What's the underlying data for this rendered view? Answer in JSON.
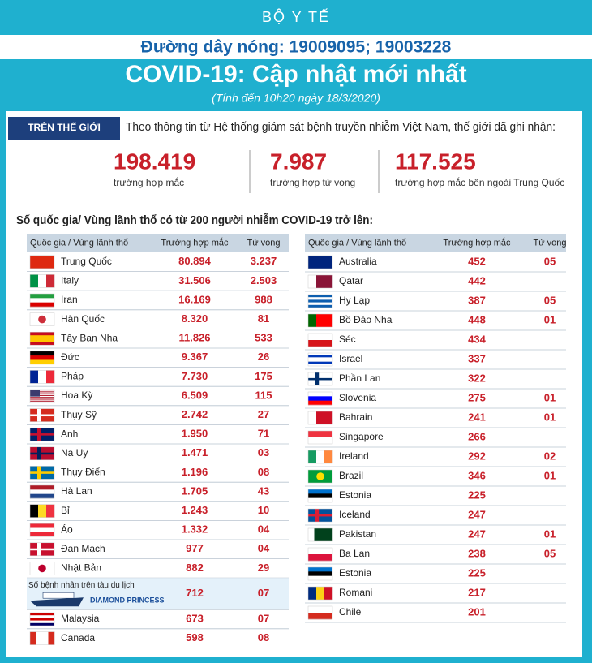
{
  "header": {
    "org": "BỘ Y TẾ",
    "hotline": "Đường dây nóng: 19009095; 19003228",
    "title": "COVID-19: Cập nhật mới nhất",
    "subtitle": "(Tính đến 10h20 ngày 18/3/2020)"
  },
  "world": {
    "label": "TRÊN THẾ GIỚI",
    "intro": "Theo thông tin từ Hệ thống giám sát bệnh truyền nhiễm Việt Nam, thế giới đã ghi nhận:",
    "stats": [
      {
        "value": "198.419",
        "label": "trường hợp mắc"
      },
      {
        "value": "7.987",
        "label": "trường hợp tử vong"
      },
      {
        "value": "117.525",
        "label": "trường hợp  mắc bên ngoài Trung Quốc"
      }
    ]
  },
  "tables": {
    "heading": "Số quốc gia/ Vùng lãnh thổ có từ 200 người  nhiễm COVID-19 trở lên:",
    "left": {
      "columns": [
        "Quốc gia / Vùng lãnh thổ",
        "Trường hợp mắc",
        "Tử vong"
      ],
      "rows": [
        {
          "name": "Trung Quốc",
          "cases": "80.894",
          "deaths": "3.237"
        },
        {
          "name": "Italy",
          "cases": "31.506",
          "deaths": "2.503"
        },
        {
          "name": "Iran",
          "cases": "16.169",
          "deaths": "988"
        },
        {
          "name": "Hàn Quốc",
          "cases": "8.320",
          "deaths": "81"
        },
        {
          "name": "Tây Ban Nha",
          "cases": "11.826",
          "deaths": "533"
        },
        {
          "name": "Đức",
          "cases": "9.367",
          "deaths": "26"
        },
        {
          "name": "Pháp",
          "cases": "7.730",
          "deaths": "175"
        },
        {
          "name": "Hoa Kỳ",
          "cases": "6.509",
          "deaths": "115"
        },
        {
          "name": "Thụy Sỹ",
          "cases": "2.742",
          "deaths": "27"
        },
        {
          "name": "Anh",
          "cases": "1.950",
          "deaths": "71"
        },
        {
          "name": "Na Uy",
          "cases": "1.471",
          "deaths": "03"
        },
        {
          "name": "Thụy Điển",
          "cases": "1.196",
          "deaths": "08"
        },
        {
          "name": "Hà Lan",
          "cases": "1.705",
          "deaths": "43"
        },
        {
          "name": "Bỉ",
          "cases": "1.243",
          "deaths": "10"
        },
        {
          "name": "Áo",
          "cases": "1.332",
          "deaths": "04"
        },
        {
          "name": "Đan Mạch",
          "cases": "977",
          "deaths": "04"
        },
        {
          "name": "Nhật Bản",
          "cases": "882",
          "deaths": "29"
        },
        {
          "name": "Số bệnh nhân trên tàu du lịch",
          "ship": "DIAMOND PRINCESS",
          "cases": "712",
          "deaths": "07"
        },
        {
          "name": "Malaysia",
          "cases": "673",
          "deaths": "07"
        },
        {
          "name": "Canada",
          "cases": "598",
          "deaths": "08"
        }
      ]
    },
    "right": {
      "columns": [
        "Quốc gia / Vùng lãnh thổ",
        "Trường hợp mắc",
        "Tử vong"
      ],
      "rows": [
        {
          "name": "Australia",
          "cases": "452",
          "deaths": "05"
        },
        {
          "name": "Qatar",
          "cases": "442"
        },
        {
          "name": "Hy Lạp",
          "cases": "387",
          "deaths": "05"
        },
        {
          "name": "Bồ Đào Nha",
          "cases": "448",
          "deaths": "01"
        },
        {
          "name": "Séc",
          "cases": "434"
        },
        {
          "name": "Israel",
          "cases": "337"
        },
        {
          "name": "Phần Lan",
          "cases": "322"
        },
        {
          "name": "Slovenia",
          "cases": "275",
          "deaths": "01"
        },
        {
          "name": "Bahrain",
          "cases": "241",
          "deaths": "01"
        },
        {
          "name": "Singapore",
          "cases": "266"
        },
        {
          "name": "Ireland",
          "cases": "292",
          "deaths": "02"
        },
        {
          "name": "Brazil",
          "cases": "346",
          "deaths": "01"
        },
        {
          "name": "Estonia",
          "cases": "225"
        },
        {
          "name": "Iceland",
          "cases": "247"
        },
        {
          "name": "Pakistan",
          "cases": "247",
          "deaths": "01"
        },
        {
          "name": "Ba Lan",
          "cases": "238",
          "deaths": "05"
        },
        {
          "name": "Estonia",
          "cases": "225"
        },
        {
          "name": "Romani",
          "cases": "217"
        },
        {
          "name": "Chile",
          "cases": "201"
        }
      ]
    }
  }
}
